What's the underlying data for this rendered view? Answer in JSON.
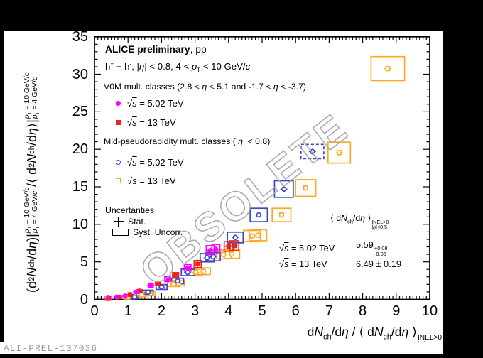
{
  "window": {
    "background": "#000000",
    "canvas_background": "#ffffff"
  },
  "header": {
    "title_bold": "ALICE preliminary",
    "title_rest": ", pp",
    "subtitle": "h^{+} + h^{-}, |*η*| < 0.8, 4 < *p*_{T} < 10 GeV/*c*"
  },
  "legend": {
    "v0m_header": "V0M mult. classes (2.8 < *η* < 5.1 and -1.7 < *η* < -3.7)",
    "v0m_entries": [
      {
        "label": "√s = 5.02 TeV"
      },
      {
        "label": "√s = 13 TeV"
      }
    ],
    "mid_header": "Mid-pseudorapidity mult. classes (|*η*| < 0.8)",
    "mid_entries": [
      {
        "label": "√s = 5.02 TeV"
      },
      {
        "label": "√s = 13 TeV"
      }
    ],
    "uncertainties_header": "Uncertanties",
    "stat_label": "Stat.",
    "syst_label": "Syst. Uncorr."
  },
  "annotation": {
    "heading": "⟨ d*N*_{ch}/d*η* ⟩^{INEL>0}_{|*η*|<0.5}",
    "rows": [
      {
        "label": "√s = 5.02 TeV",
        "value": "5.59^{+0.08}_{-0.06}"
      },
      {
        "label": "√s = 13 TeV",
        "value": "6.49 ± 0.19"
      }
    ]
  },
  "watermark": "OBSOLETE",
  "footer": {
    "figure_id": "ALI-PREL-137036"
  },
  "chart_data": {
    "type": "scatter",
    "title": "",
    "xlabel": "d*N*_{ch}/d*η* / ⟨ d*N*_{ch}/d*η* ⟩^{INEL>0}_{|*η*|<0.5}",
    "ylabel": "(d^{2}*N*_{ch} /d*η*)|^{*p*_{T} = 10 GeV/*c*}_{*p*_{T} = 4 GeV/*c*} /⟨ d^{2}*N*_{ch} /d*η* ⟩|^{*p*_{T} = 10 GeV/*c*}_{*p*_{T} = 4 GeV/*c*}",
    "xlim": [
      0,
      10
    ],
    "ylim": [
      0,
      35
    ],
    "grid": false,
    "x_tick_labels": [
      "0",
      "1",
      "2",
      "3",
      "4",
      "5",
      "6",
      "7",
      "8",
      "9",
      "10"
    ],
    "y_tick_labels": [
      "0",
      "5",
      "10",
      "15",
      "20",
      "25",
      "30",
      "35"
    ],
    "x_minor_step": 0.1,
    "y_minor_step": 1,
    "legend_position": "top-left-inside",
    "series": [
      {
        "name": "V0M mult. classes, √s = 5.02 TeV",
        "group": "v0m",
        "marker": "filled-circle",
        "color": "#ff00ff",
        "points": [
          [
            0.4,
            0.12
          ],
          [
            0.67,
            0.27
          ],
          [
            0.92,
            0.45
          ],
          [
            1.25,
            1.0
          ],
          [
            1.68,
            1.9
          ],
          [
            2.18,
            2.7
          ],
          [
            2.78,
            4.2
          ],
          [
            3.45,
            6.55
          ],
          [
            3.62,
            6.7
          ]
        ]
      },
      {
        "name": "V0M mult. classes, √s = 13 TeV",
        "group": "v0m",
        "marker": "filled-square",
        "color": "#e8251d",
        "points": [
          [
            0.42,
            0.14
          ],
          [
            0.73,
            0.32
          ],
          [
            1.06,
            0.64
          ],
          [
            1.35,
            1.1
          ],
          [
            1.9,
            2.15
          ],
          [
            2.42,
            3.2
          ],
          [
            3.08,
            4.7
          ],
          [
            4.0,
            7.05
          ],
          [
            4.17,
            7.15
          ]
        ]
      },
      {
        "name": "Mid-pseudorapidity mult. classes, √s = 5.02 TeV",
        "group": "mid",
        "marker": "open-circle",
        "color": "#3a45cc",
        "dashed_last_box": true,
        "points": [
          [
            1.19,
            0.31
          ],
          [
            1.6,
            0.95
          ],
          [
            2.0,
            1.65
          ],
          [
            2.48,
            2.45
          ],
          [
            2.78,
            3.6
          ],
          [
            3.36,
            5.55
          ],
          [
            3.54,
            5.7
          ],
          [
            4.2,
            8.25
          ],
          [
            4.9,
            11.25
          ],
          [
            5.65,
            14.7
          ],
          [
            6.5,
            19.7,
            0.34,
            0.95
          ]
        ]
      },
      {
        "name": "Mid-pseudorapidity mult. classes, √s = 13 TeV",
        "group": "mid",
        "marker": "open-square",
        "color": "#ffa826",
        "points": [
          [
            0.4,
            0.1
          ],
          [
            1.0,
            0.3
          ],
          [
            1.4,
            0.6
          ],
          [
            1.66,
            0.78
          ],
          [
            2.35,
            2.05
          ],
          [
            2.5,
            2.15
          ],
          [
            3.02,
            3.6
          ],
          [
            3.25,
            3.75
          ],
          [
            3.85,
            6.0
          ],
          [
            4.1,
            6.05
          ],
          [
            4.7,
            8.45
          ],
          [
            4.88,
            8.55
          ],
          [
            5.58,
            11.25
          ],
          [
            6.3,
            14.85
          ],
          [
            7.3,
            19.55
          ],
          [
            8.75,
            30.75,
            0.5,
            1.6
          ]
        ]
      }
    ],
    "syst_box": {
      "v0m": {
        "hw_base": 0.03,
        "hw_slope": 0.025,
        "hh_base": 0.12,
        "hh_slope": 0.075
      },
      "mid": {
        "hw_base": 0.1,
        "hw_slope": 0.032,
        "hh_base": 0.22,
        "hh_slope": 0.06
      }
    },
    "mean_mult_values": {
      "5.02 TeV": "5.59 +0.08 -0.06",
      "13 TeV": "6.49 ± 0.19"
    }
  }
}
